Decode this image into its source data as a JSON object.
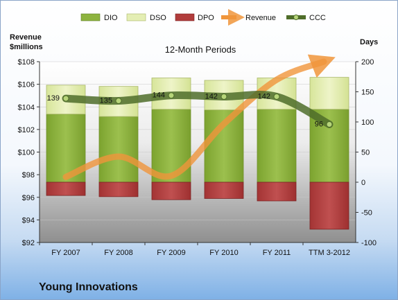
{
  "company": "Young Innovations",
  "chart_data": {
    "type": "bar",
    "title": "12-Month Periods",
    "categories": [
      "FY 2007",
      "FY 2008",
      "FY 2009",
      "FY 2010",
      "FY 2011",
      "TTM 3-2012"
    ],
    "left_axis": {
      "label_line1": "Revenue",
      "label_line2": "$millions",
      "min": 92,
      "max": 108,
      "step": 2,
      "ticks": [
        "$92",
        "$94",
        "$96",
        "$98",
        "$100",
        "$102",
        "$104",
        "$106",
        "$108"
      ]
    },
    "right_axis": {
      "label": "Days",
      "min": -100,
      "max": 200,
      "step": 50,
      "ticks": [
        "-100",
        "-50",
        "0",
        "50",
        "100",
        "150",
        "200"
      ]
    },
    "legend": [
      "DIO",
      "DSO",
      "DPO",
      "Revenue",
      "CCC"
    ],
    "legend_position": "top",
    "series": [
      {
        "name": "DIO",
        "type": "stacked-bar",
        "axis": "right",
        "color": "#8db33f",
        "values": [
          113,
          109,
          121,
          120,
          121,
          121
        ]
      },
      {
        "name": "DSO",
        "type": "stacked-bar",
        "axis": "right",
        "color": "#dfeaa7",
        "values": [
          48,
          50,
          52,
          49,
          52,
          53
        ]
      },
      {
        "name": "DPO",
        "type": "stacked-bar",
        "axis": "right",
        "color": "#b13c3c",
        "values": [
          -22,
          -24,
          -29,
          -27,
          -31,
          -78
        ]
      },
      {
        "name": "Revenue",
        "type": "line",
        "axis": "left",
        "color": "#f0953b",
        "values": [
          97.8,
          99.6,
          97.9,
          102.5,
          106.4,
          108.0
        ]
      },
      {
        "name": "CCC",
        "type": "line",
        "axis": "right",
        "color": "#4f6d2a",
        "values": [
          139,
          135,
          144,
          142,
          142,
          96
        ],
        "data_labels": [
          "139",
          "135",
          "144",
          "142",
          "142",
          "96"
        ]
      }
    ],
    "grid": true
  }
}
